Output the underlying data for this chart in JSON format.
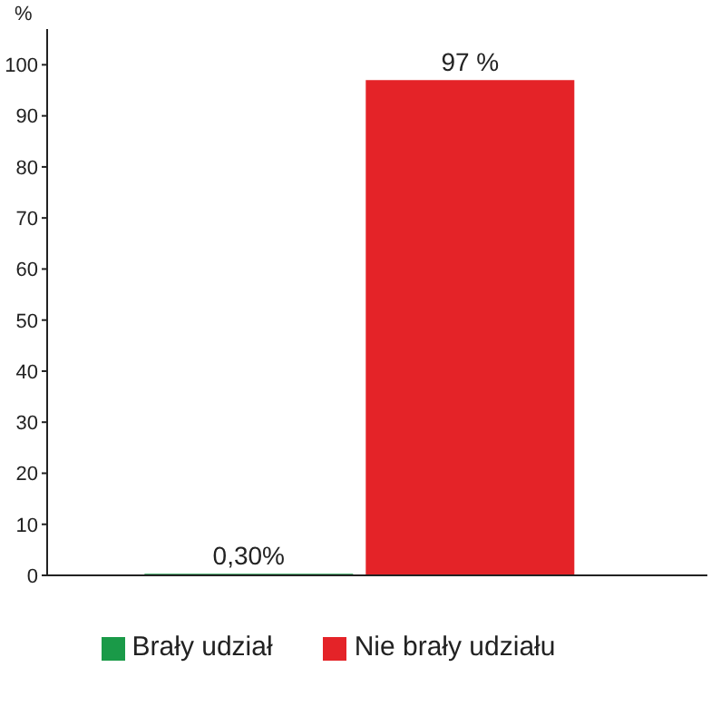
{
  "chart_data": {
    "type": "bar",
    "ylabel": "%",
    "categories": [
      null,
      null
    ],
    "stacked": true,
    "series": [
      {
        "name": "Brały udział",
        "color": "#1a9a48",
        "values": [
          0.3,
          null
        ],
        "value_labels": [
          "0,30%",
          null
        ]
      },
      {
        "name": "Nie brały udziału",
        "color": "#e42328",
        "values": [
          null,
          97
        ],
        "value_labels": [
          null,
          "97 %"
        ]
      }
    ],
    "ylim": [
      0,
      107
    ],
    "yticks": [
      0,
      10,
      20,
      30,
      40,
      50,
      60,
      70,
      80,
      90,
      100
    ],
    "tick_labels": "y",
    "grid": false,
    "legend": "bottom"
  }
}
